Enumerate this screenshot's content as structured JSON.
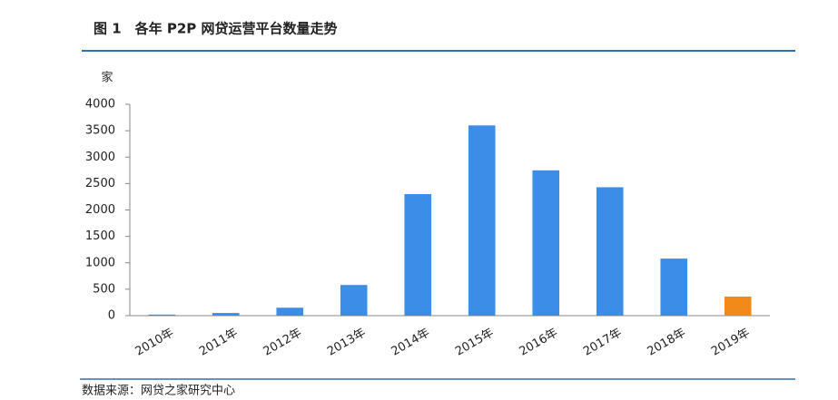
{
  "chart_data": {
    "type": "bar",
    "title": "图 1　各年 P2P 网贷运营平台数量走势",
    "y_label": "家",
    "source": "数据来源：网贷之家研究中心",
    "categories": [
      "2010年",
      "2011年",
      "2012年",
      "2013年",
      "2014年",
      "2015年",
      "2016年",
      "2017年",
      "2018年",
      "2019年"
    ],
    "values": [
      20,
      50,
      150,
      580,
      2300,
      3600,
      2750,
      2430,
      1080,
      360
    ],
    "colors": [
      "#3b8de6",
      "#3b8de6",
      "#3b8de6",
      "#3b8de6",
      "#3b8de6",
      "#3b8de6",
      "#3b8de6",
      "#3b8de6",
      "#3b8de6",
      "#f28a1a"
    ],
    "ylim": [
      0,
      4000
    ],
    "yticks": [
      0,
      500,
      1000,
      1500,
      2000,
      2500,
      3000,
      3500,
      4000
    ],
    "grid": false
  }
}
